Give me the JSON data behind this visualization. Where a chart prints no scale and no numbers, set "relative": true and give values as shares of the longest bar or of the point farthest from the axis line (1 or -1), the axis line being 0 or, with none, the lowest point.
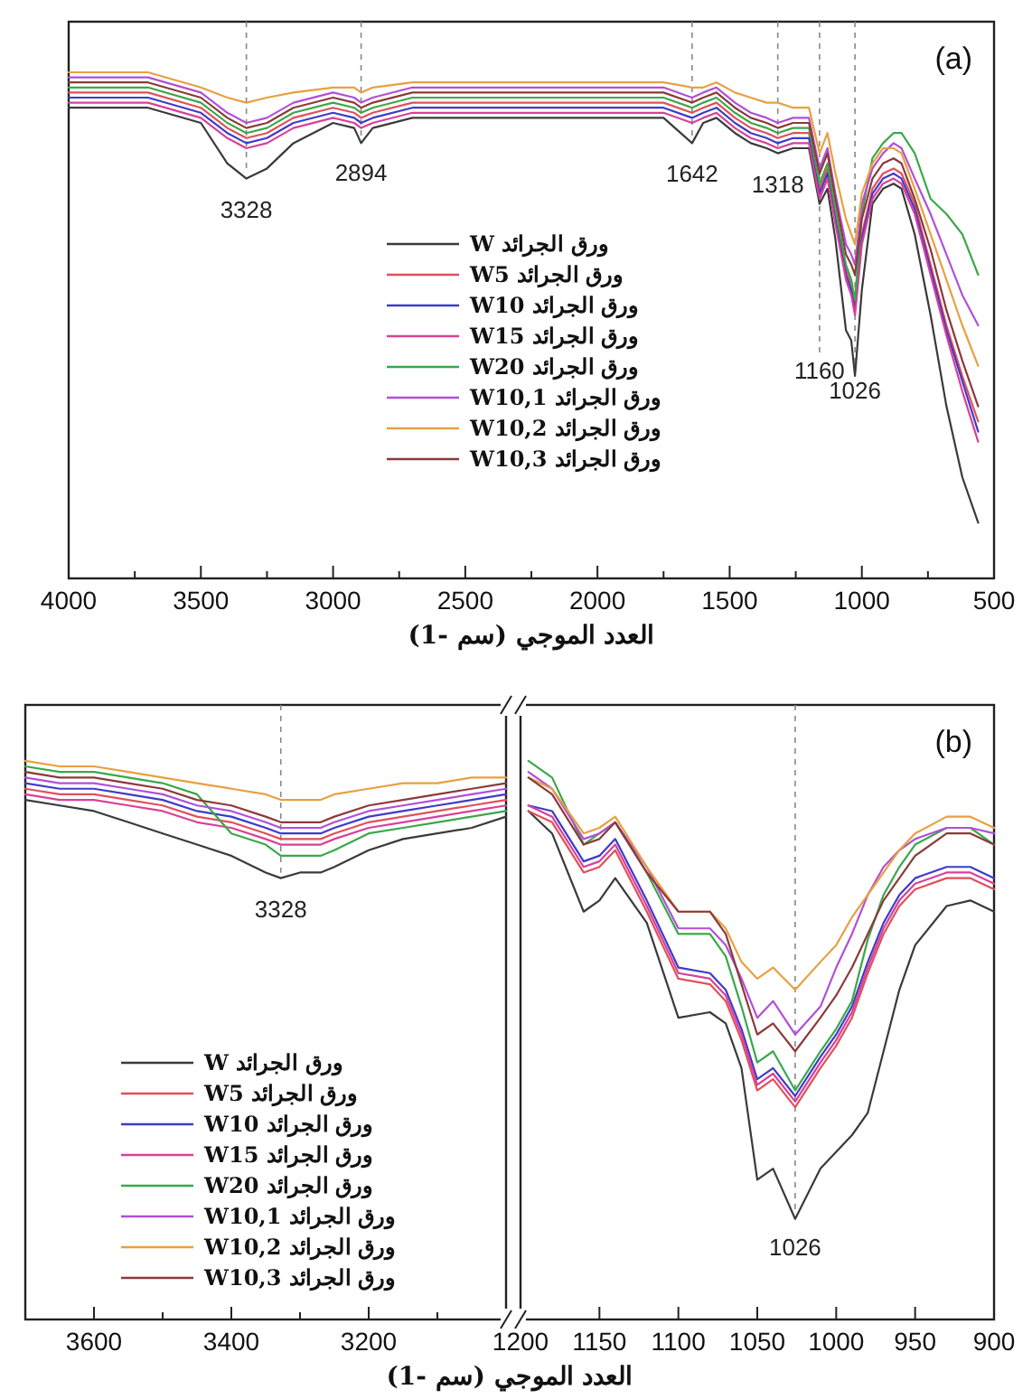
{
  "chart_data": [
    {
      "type": "line",
      "relative": true,
      "annotations": [
        "(a)"
      ],
      "xlabel": "العدد الموجي (سم -1)",
      "xlim": [
        4000,
        500
      ],
      "xticks": [
        4000,
        {
          "value": 3750,
          "label": null
        },
        3500,
        {
          "value": 3250,
          "label": null
        },
        3000,
        {
          "value": 2750,
          "label": null
        },
        2500,
        {
          "value": 2250,
          "label": null
        },
        2000,
        {
          "value": 1750,
          "label": null
        },
        1500,
        {
          "value": 1250,
          "label": null
        },
        1000,
        {
          "value": 750,
          "label": null
        },
        500
      ],
      "legend": "center",
      "ref_lines": [
        {
          "axis": "x",
          "value": 3328,
          "label": "3328",
          "line_style": "dashed"
        },
        {
          "axis": "x",
          "value": 2894,
          "label": "2894",
          "line_style": "dashed"
        },
        {
          "axis": "x",
          "value": 1642,
          "label": "1642",
          "line_style": "dashed"
        },
        {
          "axis": "x",
          "value": 1318,
          "label": "1318",
          "line_style": "dashed"
        },
        {
          "axis": "x",
          "value": 1160,
          "label": "1160",
          "line_style": "dashed"
        },
        {
          "axis": "x",
          "value": 1026,
          "label": "1026",
          "line_style": "dashed"
        }
      ],
      "x": [
        4000,
        3700,
        3500,
        3400,
        3328,
        3250,
        3150,
        3000,
        2920,
        2894,
        2850,
        2700,
        2400,
        2000,
        1750,
        1642,
        1600,
        1550,
        1480,
        1420,
        1360,
        1318,
        1260,
        1200,
        1160,
        1130,
        1100,
        1060,
        1040,
        1026,
        1000,
        960,
        920,
        880,
        850,
        800,
        740,
        680,
        620,
        560
      ],
      "series": [
        {
          "name": "ورق الجرائد W",
          "color": "#3a3a3a",
          "values": [
            0.93,
            0.93,
            0.9,
            0.82,
            0.79,
            0.81,
            0.86,
            0.9,
            0.89,
            0.86,
            0.89,
            0.91,
            0.91,
            0.91,
            0.91,
            0.86,
            0.9,
            0.91,
            0.88,
            0.86,
            0.85,
            0.84,
            0.85,
            0.85,
            0.74,
            0.77,
            0.67,
            0.49,
            0.47,
            0.4,
            0.57,
            0.74,
            0.77,
            0.78,
            0.77,
            0.68,
            0.52,
            0.34,
            0.2,
            0.11
          ]
        },
        {
          "name": "ورق الجرائد W5",
          "color": "#e0505a",
          "values": [
            0.96,
            0.96,
            0.93,
            0.89,
            0.87,
            0.88,
            0.91,
            0.93,
            0.92,
            0.91,
            0.92,
            0.94,
            0.94,
            0.94,
            0.94,
            0.92,
            0.93,
            0.94,
            0.91,
            0.89,
            0.88,
            0.87,
            0.88,
            0.88,
            0.77,
            0.81,
            0.72,
            0.61,
            0.58,
            0.54,
            0.68,
            0.77,
            0.8,
            0.81,
            0.8,
            0.74,
            0.62,
            0.5,
            0.4,
            0.31
          ]
        },
        {
          "name": "ورق الجرائد W10",
          "color": "#3c3cc8",
          "values": [
            0.95,
            0.95,
            0.92,
            0.88,
            0.86,
            0.87,
            0.9,
            0.92,
            0.91,
            0.9,
            0.91,
            0.93,
            0.93,
            0.93,
            0.93,
            0.91,
            0.92,
            0.93,
            0.9,
            0.88,
            0.87,
            0.86,
            0.87,
            0.87,
            0.76,
            0.8,
            0.71,
            0.6,
            0.57,
            0.53,
            0.67,
            0.76,
            0.79,
            0.8,
            0.79,
            0.73,
            0.61,
            0.49,
            0.39,
            0.29
          ]
        },
        {
          "name": "ورق الجرائد W15",
          "color": "#d8409a",
          "values": [
            0.94,
            0.94,
            0.91,
            0.87,
            0.85,
            0.86,
            0.89,
            0.91,
            0.9,
            0.89,
            0.9,
            0.92,
            0.92,
            0.92,
            0.92,
            0.9,
            0.91,
            0.92,
            0.89,
            0.87,
            0.86,
            0.85,
            0.86,
            0.86,
            0.75,
            0.79,
            0.7,
            0.59,
            0.56,
            0.52,
            0.66,
            0.75,
            0.78,
            0.79,
            0.78,
            0.72,
            0.6,
            0.48,
            0.37,
            0.27
          ]
        },
        {
          "name": "ورق الجرائد W20",
          "color": "#3aa84a",
          "values": [
            0.97,
            0.97,
            0.94,
            0.9,
            0.88,
            0.89,
            0.92,
            0.94,
            0.93,
            0.92,
            0.93,
            0.95,
            0.95,
            0.95,
            0.95,
            0.93,
            0.94,
            0.95,
            0.92,
            0.9,
            0.89,
            0.88,
            0.89,
            0.89,
            0.78,
            0.82,
            0.73,
            0.62,
            0.59,
            0.55,
            0.72,
            0.83,
            0.86,
            0.88,
            0.88,
            0.84,
            0.75,
            0.72,
            0.68,
            0.6
          ]
        },
        {
          "name": "ورق الجرائد W10,1",
          "color": "#b050d8",
          "values": [
            0.99,
            0.99,
            0.96,
            0.92,
            0.9,
            0.91,
            0.94,
            0.96,
            0.95,
            0.94,
            0.95,
            0.97,
            0.97,
            0.97,
            0.97,
            0.95,
            0.96,
            0.97,
            0.94,
            0.92,
            0.91,
            0.9,
            0.91,
            0.91,
            0.81,
            0.85,
            0.76,
            0.66,
            0.64,
            0.62,
            0.74,
            0.81,
            0.84,
            0.86,
            0.85,
            0.79,
            0.72,
            0.64,
            0.56,
            0.5
          ]
        },
        {
          "name": "ورق الجرائد W10,2",
          "color": "#e8a040",
          "values": [
            1.0,
            1.0,
            0.97,
            0.95,
            0.94,
            0.95,
            0.96,
            0.97,
            0.97,
            0.96,
            0.97,
            0.98,
            0.98,
            0.98,
            0.98,
            0.97,
            0.97,
            0.98,
            0.96,
            0.95,
            0.94,
            0.94,
            0.93,
            0.93,
            0.84,
            0.88,
            0.8,
            0.71,
            0.68,
            0.66,
            0.76,
            0.82,
            0.85,
            0.85,
            0.84,
            0.77,
            0.68,
            0.59,
            0.5,
            0.42
          ]
        },
        {
          "name": "ورق الجرائد W10,3",
          "color": "#8b3a3a",
          "values": [
            0.98,
            0.98,
            0.95,
            0.91,
            0.89,
            0.9,
            0.93,
            0.95,
            0.94,
            0.93,
            0.94,
            0.96,
            0.96,
            0.96,
            0.96,
            0.94,
            0.95,
            0.96,
            0.93,
            0.91,
            0.9,
            0.89,
            0.9,
            0.9,
            0.8,
            0.84,
            0.75,
            0.64,
            0.62,
            0.6,
            0.71,
            0.79,
            0.82,
            0.83,
            0.82,
            0.75,
            0.65,
            0.53,
            0.43,
            0.34
          ]
        }
      ]
    },
    {
      "type": "line",
      "relative": true,
      "xlabel": "العدد الموجي (سم -1)",
      "xlim": [
        3700,
        3000
      ],
      "xticks": [
        3600,
        {
          "value": 3500,
          "label": null
        },
        3400,
        {
          "value": 3300,
          "label": null
        },
        3200,
        {
          "value": 3100,
          "label": null
        }
      ],
      "legend": "bottom",
      "ref_lines": [
        {
          "axis": "x",
          "value": 3328,
          "label": "3328",
          "line_style": "dashed"
        }
      ],
      "x": [
        3700,
        3650,
        3600,
        3550,
        3500,
        3450,
        3400,
        3350,
        3328,
        3300,
        3270,
        3250,
        3200,
        3150,
        3100,
        3050,
        3000
      ],
      "series": [
        {
          "name": "ورق الجرائد W",
          "color": "#3a3a3a",
          "values": [
            0.93,
            0.92,
            0.91,
            0.89,
            0.87,
            0.85,
            0.83,
            0.8,
            0.79,
            0.8,
            0.8,
            0.81,
            0.84,
            0.86,
            0.87,
            0.88,
            0.9
          ]
        },
        {
          "name": "ورق الجرائد W5",
          "color": "#e0505a",
          "values": [
            0.95,
            0.94,
            0.94,
            0.93,
            0.92,
            0.9,
            0.89,
            0.87,
            0.86,
            0.86,
            0.86,
            0.87,
            0.89,
            0.9,
            0.91,
            0.92,
            0.93
          ]
        },
        {
          "name": "ورق الجرائد W10",
          "color": "#3c3cc8",
          "values": [
            0.96,
            0.95,
            0.95,
            0.94,
            0.93,
            0.91,
            0.9,
            0.88,
            0.87,
            0.87,
            0.87,
            0.88,
            0.9,
            0.91,
            0.92,
            0.93,
            0.94
          ]
        },
        {
          "name": "ورق الجرائد W15",
          "color": "#d8409a",
          "values": [
            0.94,
            0.93,
            0.93,
            0.92,
            0.91,
            0.89,
            0.88,
            0.86,
            0.85,
            0.85,
            0.85,
            0.86,
            0.88,
            0.89,
            0.9,
            0.91,
            0.92
          ]
        },
        {
          "name": "ورق الجرائد W20",
          "color": "#3aa84a",
          "values": [
            0.99,
            0.98,
            0.98,
            0.97,
            0.96,
            0.94,
            0.87,
            0.85,
            0.83,
            0.83,
            0.83,
            0.84,
            0.87,
            0.88,
            0.89,
            0.9,
            0.91
          ]
        },
        {
          "name": "ورق الجرائد W10,1",
          "color": "#b050d8",
          "values": [
            0.97,
            0.96,
            0.96,
            0.95,
            0.94,
            0.92,
            0.91,
            0.89,
            0.88,
            0.88,
            0.88,
            0.89,
            0.91,
            0.92,
            0.93,
            0.94,
            0.95
          ]
        },
        {
          "name": "ورق الجرائد W10,2",
          "color": "#e8a040",
          "values": [
            1.0,
            0.99,
            0.99,
            0.98,
            0.97,
            0.96,
            0.95,
            0.94,
            0.93,
            0.93,
            0.93,
            0.94,
            0.95,
            0.96,
            0.96,
            0.97,
            0.97
          ]
        },
        {
          "name": "ورق الجرائد W10,3",
          "color": "#8b3a3a",
          "values": [
            0.98,
            0.97,
            0.97,
            0.96,
            0.95,
            0.93,
            0.92,
            0.9,
            0.89,
            0.89,
            0.89,
            0.9,
            0.92,
            0.93,
            0.94,
            0.95,
            0.96
          ]
        }
      ]
    },
    {
      "type": "line",
      "relative": true,
      "annotations": [
        "(b)"
      ],
      "xlim": [
        1200,
        900
      ],
      "xticks": [
        1200,
        1150,
        1100,
        1050,
        1000,
        950,
        900
      ],
      "ref_lines": [
        {
          "axis": "x",
          "value": 1026,
          "label": "1026",
          "line_style": "dashed"
        }
      ],
      "x": [
        1195,
        1180,
        1160,
        1150,
        1140,
        1120,
        1100,
        1080,
        1070,
        1060,
        1050,
        1040,
        1026,
        1010,
        1000,
        990,
        980,
        970,
        960,
        950,
        930,
        915,
        900
      ],
      "series": [
        {
          "color": "#3a3a3a",
          "values": [
            0.91,
            0.87,
            0.73,
            0.75,
            0.79,
            0.71,
            0.54,
            0.55,
            0.53,
            0.45,
            0.25,
            0.27,
            0.18,
            0.27,
            0.3,
            0.33,
            0.37,
            0.48,
            0.59,
            0.67,
            0.74,
            0.75,
            0.73
          ]
        },
        {
          "color": "#e0505a",
          "values": [
            0.91,
            0.89,
            0.8,
            0.81,
            0.84,
            0.73,
            0.61,
            0.6,
            0.57,
            0.5,
            0.41,
            0.43,
            0.38,
            0.45,
            0.49,
            0.54,
            0.62,
            0.69,
            0.74,
            0.77,
            0.79,
            0.79,
            0.77
          ]
        },
        {
          "color": "#3c3cc8",
          "values": [
            0.92,
            0.91,
            0.82,
            0.83,
            0.86,
            0.75,
            0.63,
            0.62,
            0.59,
            0.52,
            0.43,
            0.45,
            0.4,
            0.47,
            0.51,
            0.56,
            0.64,
            0.71,
            0.76,
            0.79,
            0.81,
            0.81,
            0.79
          ]
        },
        {
          "color": "#d8409a",
          "values": [
            0.92,
            0.9,
            0.81,
            0.82,
            0.85,
            0.74,
            0.62,
            0.61,
            0.58,
            0.51,
            0.42,
            0.44,
            0.39,
            0.46,
            0.5,
            0.55,
            0.63,
            0.7,
            0.75,
            0.78,
            0.8,
            0.8,
            0.78
          ]
        },
        {
          "color": "#3aa84a",
          "values": [
            1.0,
            0.97,
            0.85,
            0.87,
            0.89,
            0.8,
            0.69,
            0.69,
            0.65,
            0.56,
            0.46,
            0.48,
            0.41,
            0.48,
            0.52,
            0.57,
            0.68,
            0.76,
            0.81,
            0.85,
            0.88,
            0.88,
            0.85
          ]
        },
        {
          "color": "#b050d8",
          "values": [
            0.98,
            0.95,
            0.86,
            0.87,
            0.89,
            0.81,
            0.7,
            0.7,
            0.67,
            0.61,
            0.54,
            0.57,
            0.51,
            0.56,
            0.63,
            0.69,
            0.76,
            0.81,
            0.84,
            0.86,
            0.88,
            0.88,
            0.87
          ]
        },
        {
          "color": "#e8a040",
          "values": [
            0.97,
            0.95,
            0.87,
            0.88,
            0.9,
            0.81,
            0.73,
            0.73,
            0.7,
            0.64,
            0.61,
            0.63,
            0.59,
            0.64,
            0.67,
            0.72,
            0.76,
            0.8,
            0.84,
            0.87,
            0.9,
            0.9,
            0.88
          ]
        },
        {
          "color": "#8b3a3a",
          "values": [
            0.97,
            0.94,
            0.85,
            0.86,
            0.89,
            0.8,
            0.73,
            0.73,
            0.69,
            0.6,
            0.51,
            0.53,
            0.48,
            0.54,
            0.58,
            0.63,
            0.69,
            0.75,
            0.79,
            0.83,
            0.87,
            0.87,
            0.85
          ]
        }
      ]
    }
  ]
}
